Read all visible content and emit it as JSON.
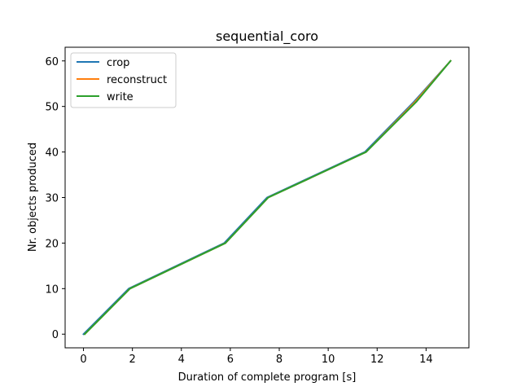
{
  "chart_data": {
    "type": "line",
    "title": "sequential_coro",
    "xlabel": "Duration of complete program [s]",
    "ylabel": "Nr. objects produced",
    "xlim": [
      -0.75,
      15.75
    ],
    "ylim": [
      -3,
      63
    ],
    "xticks": [
      0,
      2,
      4,
      6,
      8,
      10,
      12,
      14
    ],
    "yticks": [
      0,
      10,
      20,
      30,
      40,
      50,
      60
    ],
    "grid": false,
    "legend_position": "top-left",
    "series": [
      {
        "name": "crop",
        "color": "#1f77b4",
        "x": [
          0.0,
          1.85,
          5.75,
          7.5,
          11.5,
          13.5,
          15.0
        ],
        "y": [
          0,
          10,
          20,
          30,
          40,
          51,
          60
        ]
      },
      {
        "name": "reconstruct",
        "color": "#ff7f0e",
        "x": [
          0.05,
          1.9,
          5.8,
          7.55,
          11.55,
          13.55,
          15.0
        ],
        "y": [
          0,
          10,
          20,
          30,
          40,
          51,
          60
        ]
      },
      {
        "name": "write",
        "color": "#2ca02c",
        "x": [
          0.05,
          1.9,
          5.8,
          7.55,
          11.55,
          13.6,
          15.0
        ],
        "y": [
          0,
          10,
          20,
          30,
          40,
          51,
          60
        ]
      }
    ]
  }
}
